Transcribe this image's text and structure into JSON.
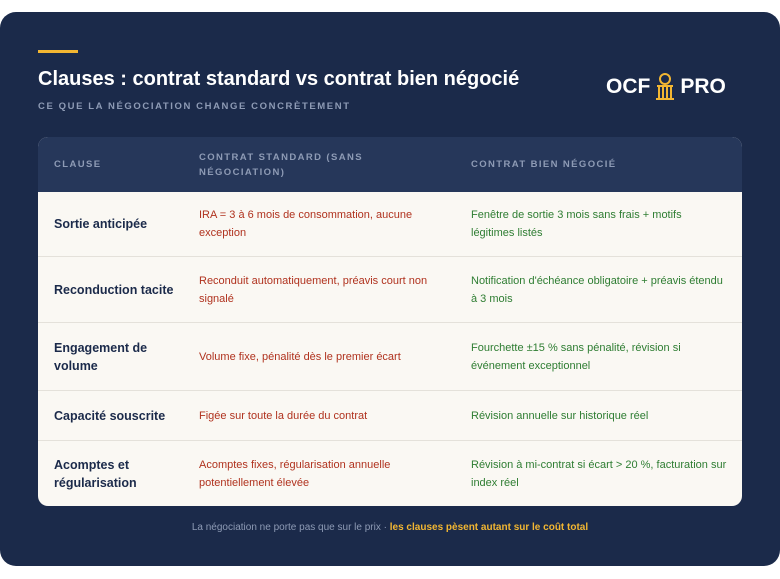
{
  "header": {
    "title": "Clauses : contrat standard vs contrat bien négocié",
    "subtitle": "CE QUE LA NÉGOCIATION CHANGE CONCRÈTEMENT"
  },
  "logo": {
    "left": "OCF",
    "right": "PRO"
  },
  "table": {
    "columns": [
      "CLAUSE",
      "CONTRAT STANDARD (SANS NÉGOCIATION)",
      "CONTRAT BIEN NÉGOCIÉ"
    ],
    "rows": [
      [
        "Sortie anticipée",
        "IRA = 3 à 6 mois de consommation, aucune exception",
        "Fenêtre de sortie 3 mois sans frais + motifs légitimes listés"
      ],
      [
        "Reconduction tacite",
        "Reconduit automatiquement, préavis court non signalé",
        "Notification d'échéance obligatoire + préavis étendu à 3 mois"
      ],
      [
        "Engagement de volume",
        "Volume fixe, pénalité dès le premier écart",
        "Fourchette ±15 % sans pénalité, révision si événement exceptionnel"
      ],
      [
        "Capacité souscrite",
        "Figée sur toute la durée du contrat",
        "Révision annuelle sur historique réel"
      ],
      [
        "Acomptes et régularisation",
        "Acomptes fixes, régularisation annuelle potentiellement élevée",
        "Révision à mi-contrat si écart > 20 %, facturation sur index réel"
      ]
    ]
  },
  "footer": {
    "text": "La négociation ne porte pas que sur le prix ·",
    "highlight": "les clauses pèsent autant sur le coût total"
  }
}
